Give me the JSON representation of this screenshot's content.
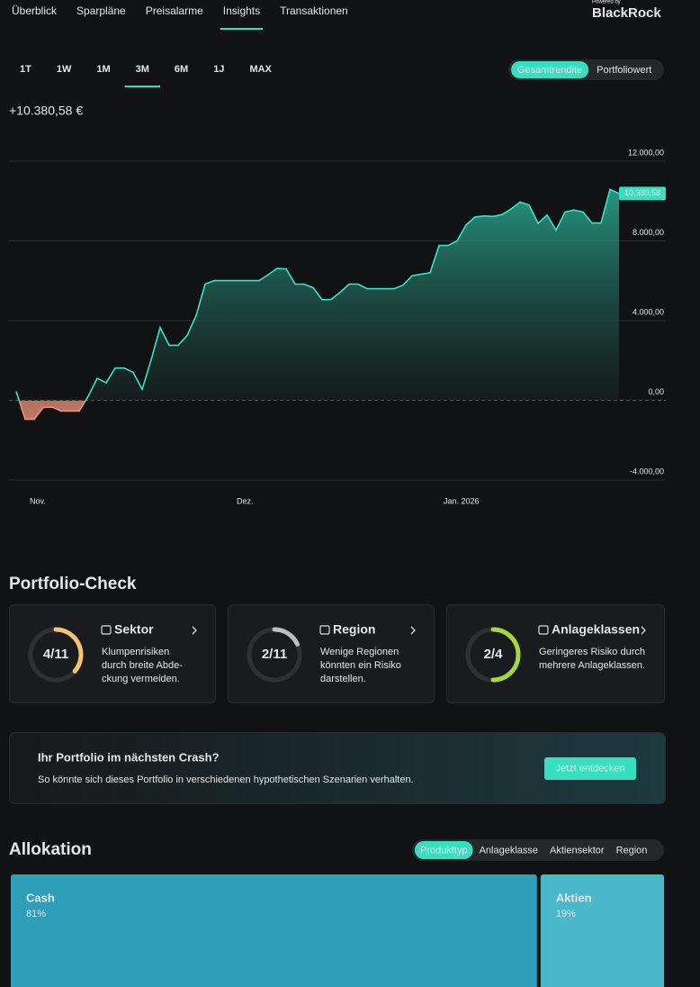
{
  "nav": {
    "tabs": [
      "Überblick",
      "Sparpläne",
      "Preisalarme",
      "Insights",
      "Transaktionen"
    ],
    "active": 3
  },
  "brand": {
    "powered": "Powered by",
    "name": "BlackRock"
  },
  "ranges": {
    "options": [
      "1T",
      "1W",
      "1M",
      "3M",
      "6M",
      "1J",
      "MAX"
    ],
    "active": 3
  },
  "view_toggle": {
    "options": [
      "Gesamtrendite",
      "Portfoliowert"
    ],
    "active": 0
  },
  "total_return": "+10.380,58 €",
  "chart_data": {
    "type": "area",
    "categories": [
      null,
      null,
      "Nov.",
      null,
      null,
      null,
      null,
      null,
      null,
      null,
      null,
      null,
      null,
      null,
      null,
      null,
      null,
      null,
      null,
      null,
      null,
      null,
      null,
      null,
      null,
      "Dez.",
      null,
      null,
      null,
      null,
      null,
      null,
      null,
      null,
      null,
      null,
      null,
      null,
      null,
      null,
      null,
      null,
      null,
      null,
      null,
      null,
      null,
      null,
      "Jan. 2026",
      null,
      null,
      null,
      null,
      null,
      null,
      null,
      null,
      null,
      null,
      null,
      null,
      null,
      null,
      null,
      null,
      null,
      null,
      null
    ],
    "values": [
      450,
      -950,
      -950,
      -360,
      -340,
      -540,
      -540,
      -540,
      200,
      1100,
      880,
      1620,
      1620,
      1400,
      550,
      2030,
      3650,
      2760,
      2760,
      3250,
      4250,
      5830,
      6010,
      6010,
      6010,
      6010,
      6010,
      6010,
      6300,
      6620,
      6600,
      5830,
      5830,
      5650,
      5050,
      5060,
      5420,
      5830,
      5830,
      5600,
      5600,
      5600,
      5600,
      5780,
      6250,
      6330,
      6400,
      7770,
      7770,
      8000,
      8800,
      9200,
      9250,
      9230,
      9320,
      9600,
      9950,
      9800,
      8880,
      9300,
      8540,
      9450,
      9550,
      9450,
      8900,
      8900,
      10580,
      10380.58
    ],
    "color": "#3ae3c3",
    "negative_color": "#e8917c",
    "ylim": [
      -4000,
      12000
    ],
    "yticks": [
      {
        "value": -4000,
        "label": "-4.000,00"
      },
      {
        "value": 0,
        "label": "0,00"
      },
      {
        "value": 4000,
        "label": "4.000,00"
      },
      {
        "value": 8000,
        "label": "8.000,00"
      },
      {
        "value": 12000,
        "label": "12.000,00"
      }
    ],
    "grid": true,
    "end_label": "10.380,58"
  },
  "portfolio_check": {
    "title": "Portfolio-Check",
    "cards": [
      {
        "title": "Sektor",
        "score": {
          "value": 4,
          "max": 11,
          "label": "4/11"
        },
        "color": "#f5c36b",
        "lines": [
          "Klumpenrisiken",
          "durch breite Abde-",
          "ckung vermeiden."
        ]
      },
      {
        "title": "Region",
        "score": {
          "value": 2,
          "max": 11,
          "label": "2/11"
        },
        "color": "#bdbdbd",
        "lines": [
          "Wenige Regionen",
          "könnten ein Risiko",
          "darstellen."
        ]
      },
      {
        "title": "Anlageklassen",
        "score": {
          "value": 2,
          "max": 4,
          "label": "2/4"
        },
        "color": "#a6d83a",
        "lines": [
          "Geringeres Risiko durch",
          "mehrere Anlageklassen."
        ]
      }
    ]
  },
  "crash": {
    "title": "Ihr Portfolio im nächsten Crash?",
    "text": "So könnte sich dieses Portfolio in verschiedenen hypothetischen Szenarien verhalten.",
    "button": "Jetzt entdecken"
  },
  "allocation": {
    "title": "Allokation",
    "tabs": [
      "Produkttyp",
      "Anlageklasse",
      "Aktiensektor",
      "Region"
    ],
    "active": 0,
    "items": [
      {
        "name": "Cash",
        "value": 81,
        "label": "81%",
        "color": "#2f9eb8"
      },
      {
        "name": "Aktien",
        "value": 19,
        "label": "19%",
        "color": "#4bb7ca"
      }
    ]
  }
}
